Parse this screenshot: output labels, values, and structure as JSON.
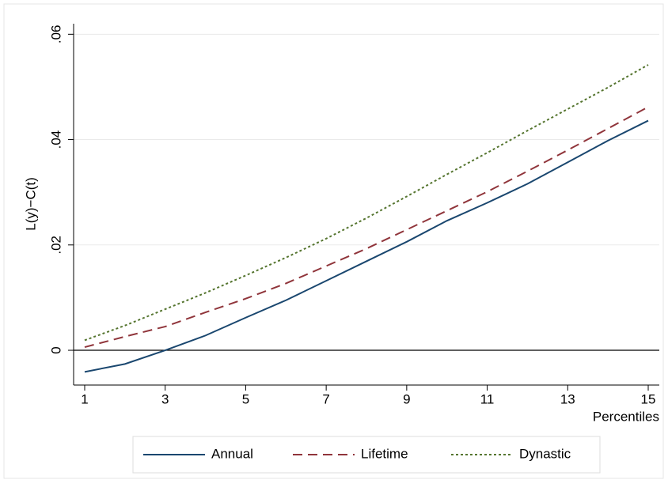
{
  "chart_data": {
    "type": "line",
    "ylabel": "L(y)−C(t)",
    "xlabel": "Percentiles",
    "x": [
      1,
      2,
      3,
      4,
      5,
      6,
      7,
      8,
      9,
      10,
      11,
      12,
      13,
      14,
      15
    ],
    "series": [
      {
        "name": "Annual",
        "color": "#1a476f",
        "dash": "solid",
        "values": [
          -0.0041,
          -0.0026,
          0.0,
          0.0028,
          0.0062,
          0.0095,
          0.0132,
          0.0169,
          0.0206,
          0.0246,
          0.028,
          0.0316,
          0.0357,
          0.0398,
          0.0436
        ]
      },
      {
        "name": "Lifetime",
        "color": "#90353b",
        "dash": "dashed",
        "values": [
          0.0006,
          0.0026,
          0.0045,
          0.0072,
          0.0098,
          0.0127,
          0.016,
          0.0193,
          0.0229,
          0.0265,
          0.0301,
          0.034,
          0.038,
          0.0421,
          0.0462
        ]
      },
      {
        "name": "Dynastic",
        "color": "#55752f",
        "dash": "dotted",
        "values": [
          0.0019,
          0.0047,
          0.0078,
          0.0109,
          0.0142,
          0.0176,
          0.0212,
          0.0251,
          0.0292,
          0.0334,
          0.0375,
          0.0417,
          0.0458,
          0.0499,
          0.0542
        ]
      }
    ],
    "xlim": [
      0.725,
      15.275
    ],
    "xticks": [
      1,
      3,
      5,
      7,
      9,
      11,
      13,
      15
    ],
    "ylim": [
      -0.0066,
      0.062
    ],
    "yticks": [
      0,
      {
        "value": 0.02,
        "label": ".02"
      },
      {
        "value": 0.04,
        "label": ".04"
      },
      {
        "value": 0.06,
        "label": ".06"
      }
    ],
    "reference_line": 0,
    "grid": true,
    "legend": "bottom"
  }
}
